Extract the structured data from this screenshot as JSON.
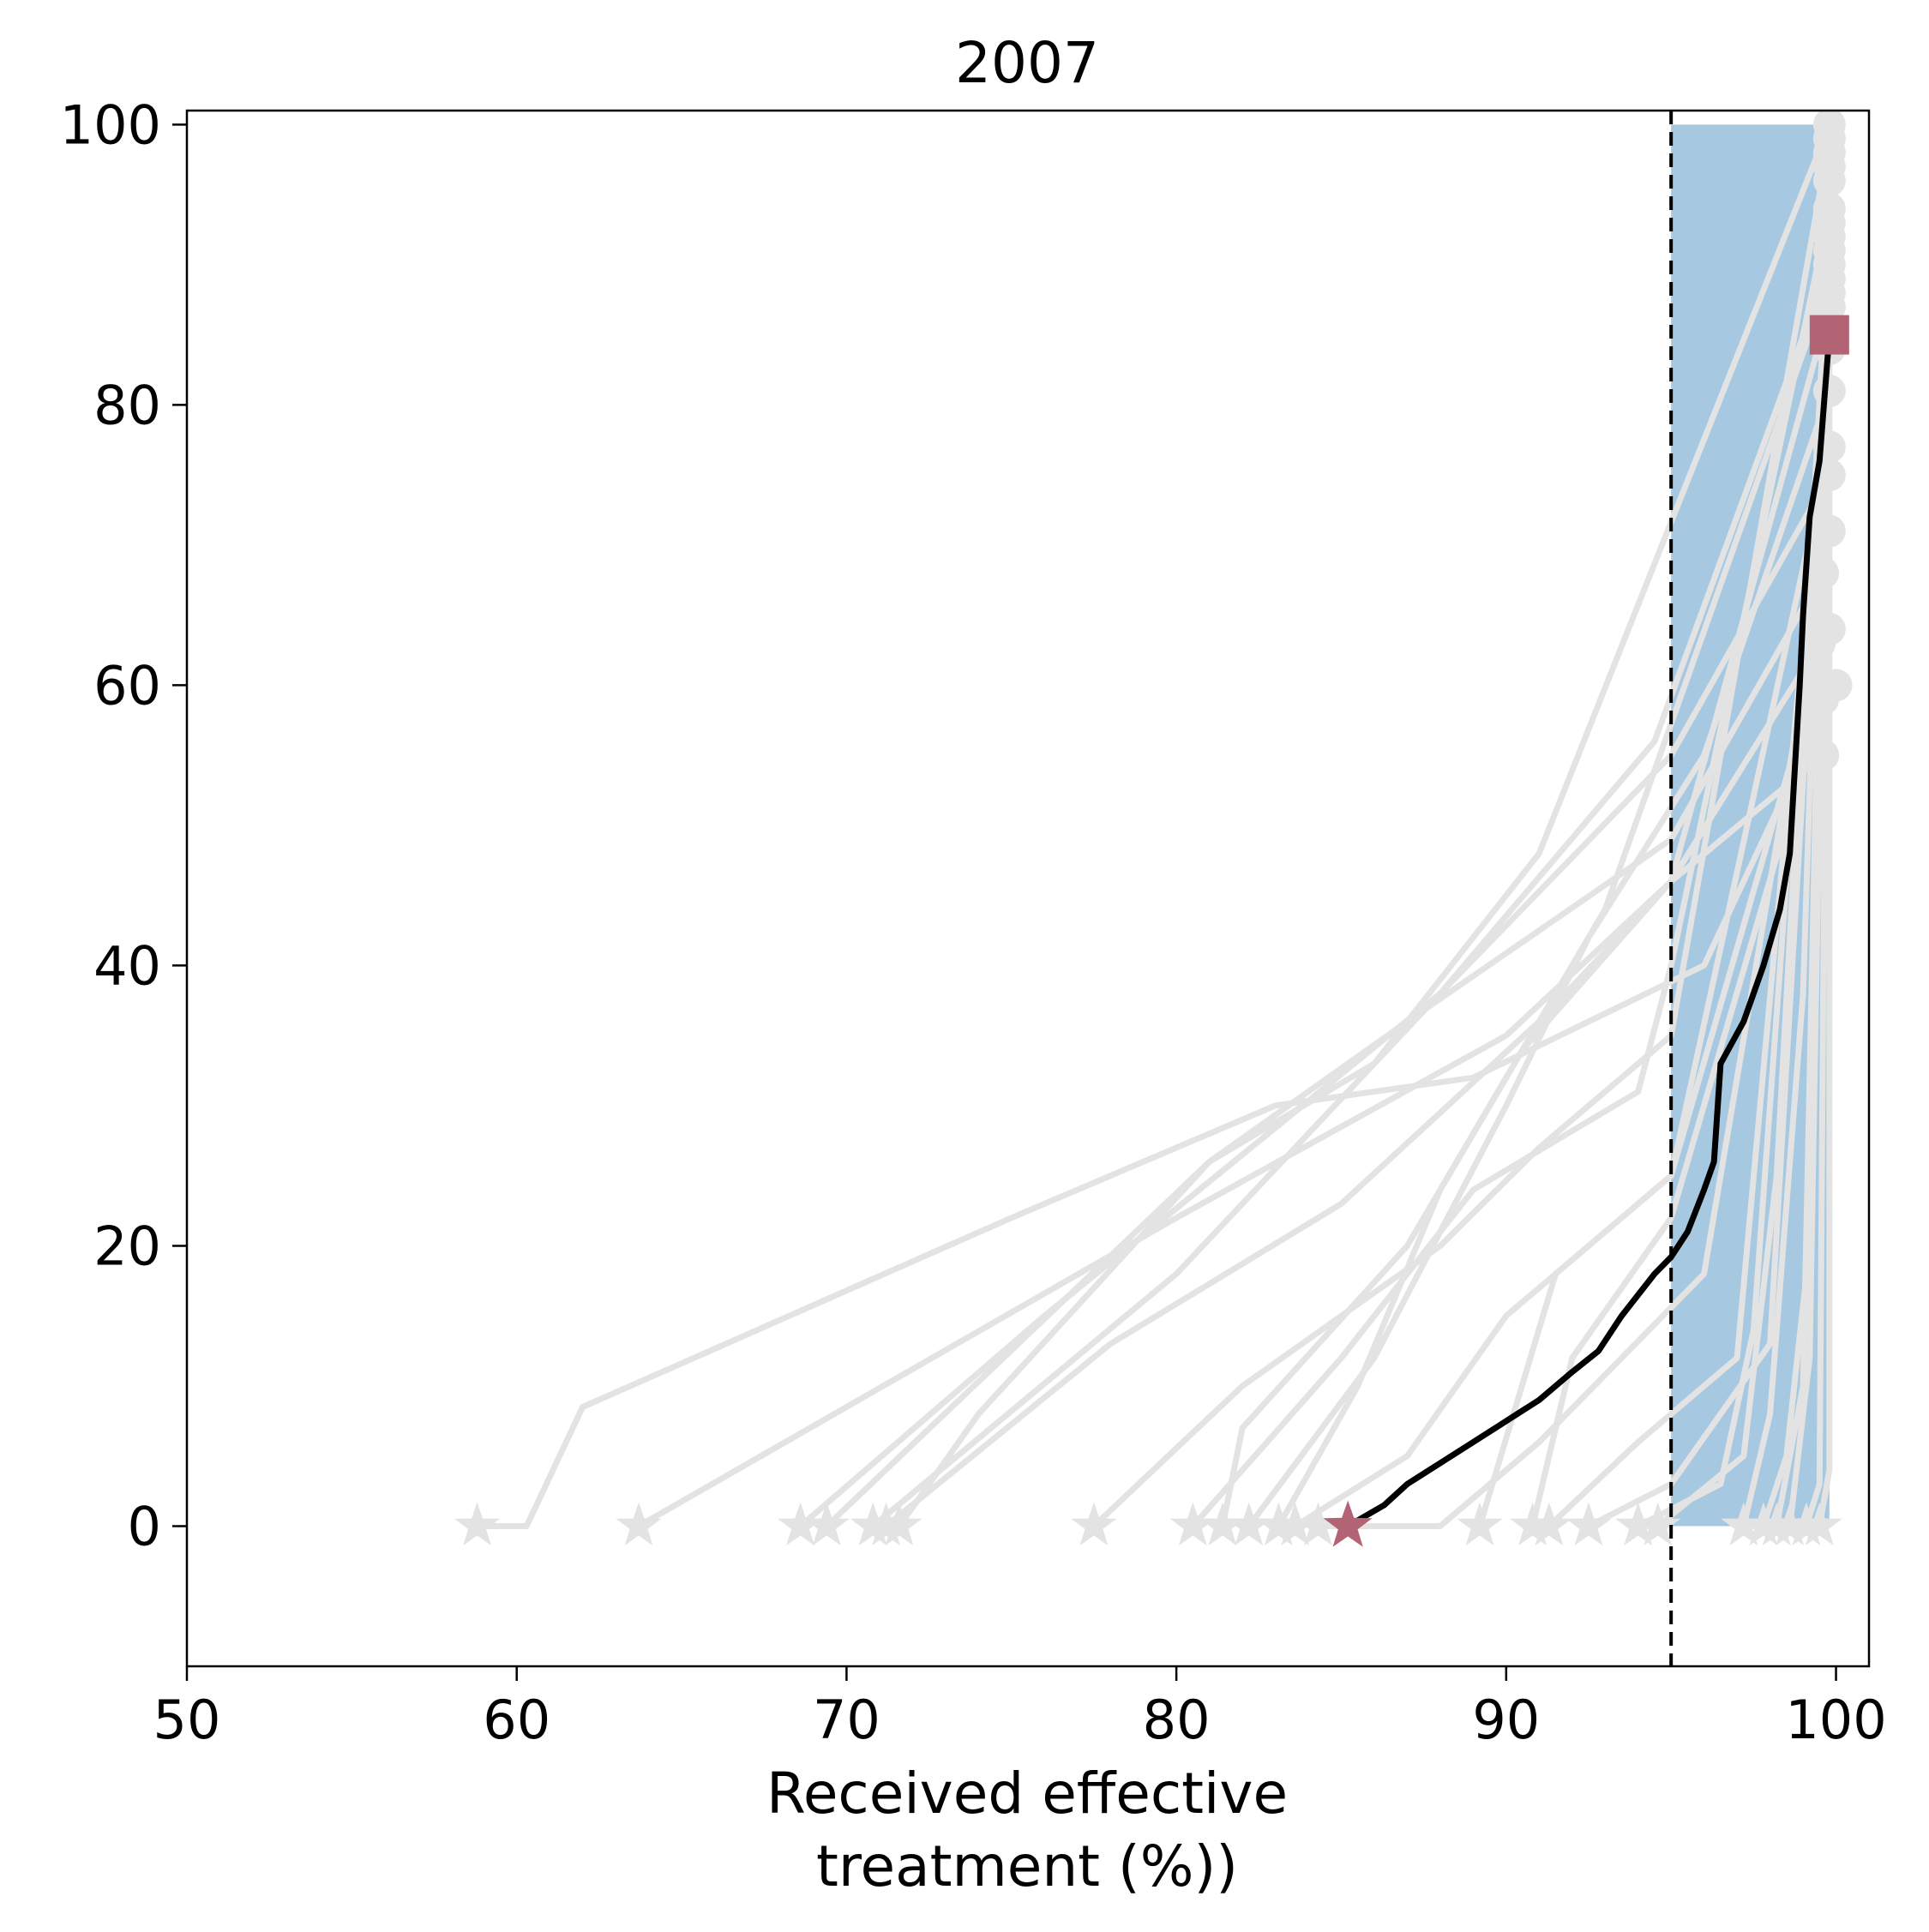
{
  "chart_data": {
    "type": "line",
    "title": "2007",
    "xlabel_lines": [
      "Received effective",
      "treatment (%))"
    ],
    "ylabel": "",
    "xlim": [
      50,
      101
    ],
    "ylim": [
      -10,
      101
    ],
    "xticks": [
      50,
      60,
      70,
      80,
      90,
      100
    ],
    "yticks": [
      0,
      20,
      40,
      60,
      80,
      100
    ],
    "grid": false,
    "legend": "none",
    "colors": {
      "band": "#a6c8e0",
      "background_lines": "#e3e3e3",
      "highlight_line": "#000000",
      "markers": "#b36474",
      "threshold_line": "#000000"
    },
    "threshold_x": 95,
    "band": {
      "x_from": 95,
      "x_to": 99.8,
      "y_from": 0,
      "y_to": 100
    },
    "background_series": [
      {
        "start_x": 58.8,
        "points": [
          [
            58.8,
            0
          ],
          [
            60.3,
            0
          ],
          [
            62,
            8.5
          ],
          [
            75,
            22
          ],
          [
            83,
            30
          ],
          [
            89,
            32
          ],
          [
            96,
            40
          ],
          [
            100,
            60
          ]
        ]
      },
      {
        "start_x": 63.7,
        "points": [
          [
            63.7,
            0
          ],
          [
            80,
            22
          ],
          [
            90,
            35
          ],
          [
            95,
            46
          ],
          [
            99.6,
            55
          ]
        ]
      },
      {
        "start_x": 68.6,
        "points": [
          [
            68.6,
            0
          ],
          [
            76,
            15
          ],
          [
            88,
            38
          ],
          [
            95,
            55
          ],
          [
            99.8,
            75
          ]
        ]
      },
      {
        "start_x": 69.4,
        "points": [
          [
            69.4,
            0
          ],
          [
            81,
            26
          ],
          [
            87,
            36
          ],
          [
            95,
            49
          ],
          [
            99.6,
            68
          ]
        ]
      },
      {
        "start_x": 70.8,
        "points": [
          [
            70.8,
            0
          ],
          [
            80,
            18
          ],
          [
            88,
            38
          ],
          [
            94.5,
            56
          ],
          [
            99.8,
            90
          ]
        ]
      },
      {
        "start_x": 71.2,
        "points": [
          [
            71.2,
            0
          ],
          [
            78,
            13
          ],
          [
            85,
            23
          ],
          [
            91,
            36
          ],
          [
            95,
            46
          ],
          [
            99.5,
            63
          ]
        ]
      },
      {
        "start_x": 71.6,
        "points": [
          [
            71.6,
            0
          ],
          [
            74,
            8
          ],
          [
            81,
            26
          ],
          [
            86,
            33
          ],
          [
            91,
            48
          ],
          [
            99.8,
            100
          ]
        ]
      },
      {
        "start_x": 77.5,
        "points": [
          [
            77.5,
            0
          ],
          [
            82,
            10
          ],
          [
            88,
            20
          ],
          [
            91,
            27
          ],
          [
            95,
            35
          ],
          [
            99.8,
            99
          ]
        ]
      },
      {
        "start_x": 80.5,
        "points": [
          [
            80.5,
            0
          ],
          [
            85,
            12
          ],
          [
            89,
            24
          ],
          [
            94,
            31
          ],
          [
            95,
            40
          ],
          [
            99.8,
            94
          ]
        ]
      },
      {
        "start_x": 81.4,
        "points": [
          [
            81.4,
            0
          ],
          [
            82,
            7
          ],
          [
            87,
            20
          ],
          [
            93,
            44
          ],
          [
            99.8,
            89
          ]
        ]
      },
      {
        "start_x": 82.2,
        "points": [
          [
            82.2,
            0
          ],
          [
            86,
            12
          ],
          [
            90,
            30
          ],
          [
            92.5,
            42
          ],
          [
            96,
            55
          ],
          [
            99.8,
            81
          ]
        ]
      },
      {
        "start_x": 83.1,
        "points": [
          [
            83.1,
            0
          ],
          [
            85.5,
            10
          ],
          [
            88,
            24
          ],
          [
            90.5,
            34
          ],
          [
            95,
            46
          ],
          [
            99.8,
            87
          ]
        ]
      },
      {
        "start_x": 83.6,
        "points": [
          [
            83.6,
            0
          ],
          [
            87,
            5
          ],
          [
            90,
            15
          ],
          [
            95,
            25
          ],
          [
            99.8,
            64
          ]
        ]
      },
      {
        "start_x": 84.3,
        "points": [
          [
            84.3,
            0
          ],
          [
            88,
            0
          ],
          [
            91,
            6
          ],
          [
            96,
            18
          ],
          [
            99.8,
            71
          ]
        ]
      },
      {
        "start_x": 89.2,
        "points": [
          [
            89.2,
            0
          ],
          [
            91.5,
            18
          ],
          [
            95,
            25
          ],
          [
            99.8,
            77
          ]
        ]
      },
      {
        "start_x": 90.8,
        "points": [
          [
            90.8,
            0
          ],
          [
            92,
            12
          ],
          [
            95,
            22
          ],
          [
            99.6,
            59
          ]
        ]
      },
      {
        "start_x": 91.3,
        "points": [
          [
            91.3,
            0
          ],
          [
            94,
            6
          ],
          [
            97,
            12
          ],
          [
            99.8,
            84
          ]
        ]
      },
      {
        "start_x": 92.5,
        "points": [
          [
            92.5,
            0
          ],
          [
            95,
            3
          ],
          [
            98,
            13
          ],
          [
            99.8,
            85
          ]
        ]
      },
      {
        "start_x": 94.0,
        "points": [
          [
            94.0,
            0
          ],
          [
            96.5,
            3
          ],
          [
            97.5,
            14
          ],
          [
            99.8,
            88
          ]
        ]
      },
      {
        "start_x": 94.6,
        "points": [
          [
            94.6,
            0
          ],
          [
            97.2,
            5
          ],
          [
            98.2,
            25
          ],
          [
            99.8,
            93
          ]
        ]
      },
      {
        "start_x": 97.2,
        "points": [
          [
            97.2,
            0
          ],
          [
            98,
            8
          ],
          [
            99,
            38
          ],
          [
            99.8,
            96
          ]
        ]
      },
      {
        "start_x": 97.8,
        "points": [
          [
            97.8,
            0
          ],
          [
            98.5,
            5
          ],
          [
            99.2,
            20
          ],
          [
            99.8,
            91
          ]
        ]
      },
      {
        "start_x": 98.2,
        "points": [
          [
            98.2,
            0
          ],
          [
            99,
            10
          ],
          [
            99.8,
            98
          ]
        ]
      },
      {
        "start_x": 98.6,
        "points": [
          [
            98.6,
            0
          ],
          [
            99.2,
            12
          ],
          [
            99.8,
            92
          ]
        ]
      },
      {
        "start_x": 99.1,
        "points": [
          [
            99.1,
            0
          ],
          [
            99.5,
            3
          ],
          [
            99.8,
            97
          ]
        ]
      },
      {
        "start_x": 99.5,
        "points": [
          [
            99.5,
            0
          ],
          [
            99.8,
            4
          ],
          [
            99.8,
            99
          ]
        ]
      }
    ],
    "highlight_series": {
      "points": [
        [
          85.2,
          0
        ],
        [
          86.3,
          1.5
        ],
        [
          87,
          3
        ],
        [
          88,
          4.5
        ],
        [
          89,
          6
        ],
        [
          90,
          7.5
        ],
        [
          91,
          9
        ],
        [
          92,
          11
        ],
        [
          92.8,
          12.5
        ],
        [
          93.5,
          15
        ],
        [
          94,
          16.5
        ],
        [
          94.5,
          18
        ],
        [
          95,
          19.2
        ],
        [
          95.5,
          21
        ],
        [
          96,
          24
        ],
        [
          96.3,
          26
        ],
        [
          96.5,
          33
        ],
        [
          97.2,
          36
        ],
        [
          97.8,
          40
        ],
        [
          98.3,
          44
        ],
        [
          98.6,
          48
        ],
        [
          98.9,
          60
        ],
        [
          99,
          65
        ],
        [
          99.2,
          72
        ],
        [
          99.5,
          76
        ],
        [
          99.8,
          85
        ]
      ],
      "start_marker": "star",
      "end_marker": "square"
    }
  }
}
